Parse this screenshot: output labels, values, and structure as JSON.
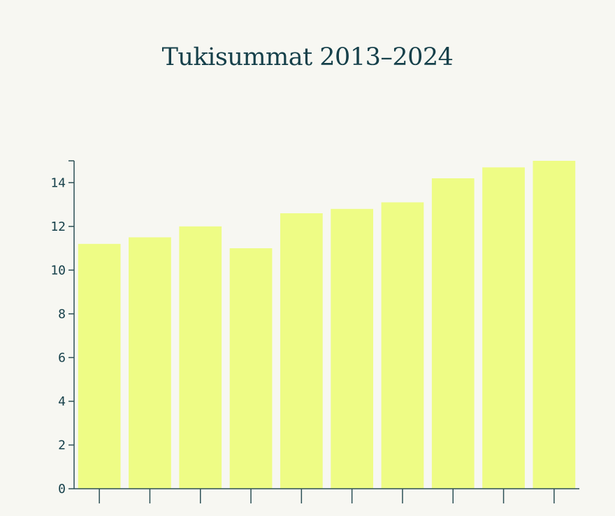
{
  "chart_data": {
    "type": "bar",
    "title": "Tukisummat 2013–2024",
    "xlabel": "",
    "ylabel": "",
    "categories": [
      "",
      "",
      "",
      "",
      "",
      "",
      "",
      "",
      "",
      ""
    ],
    "values": [
      11.2,
      11.5,
      12.0,
      11.0,
      12.6,
      12.8,
      13.1,
      14.2,
      14.7,
      15.0
    ],
    "ylim": [
      0,
      15
    ],
    "yticks": [
      0,
      2,
      4,
      6,
      8,
      10,
      12,
      14
    ],
    "grid": false,
    "legend": "none",
    "colors": {
      "bar": "#eefc85",
      "axis": "#2b4f55",
      "text": "#16404a",
      "background": "#f7f7f2"
    }
  }
}
